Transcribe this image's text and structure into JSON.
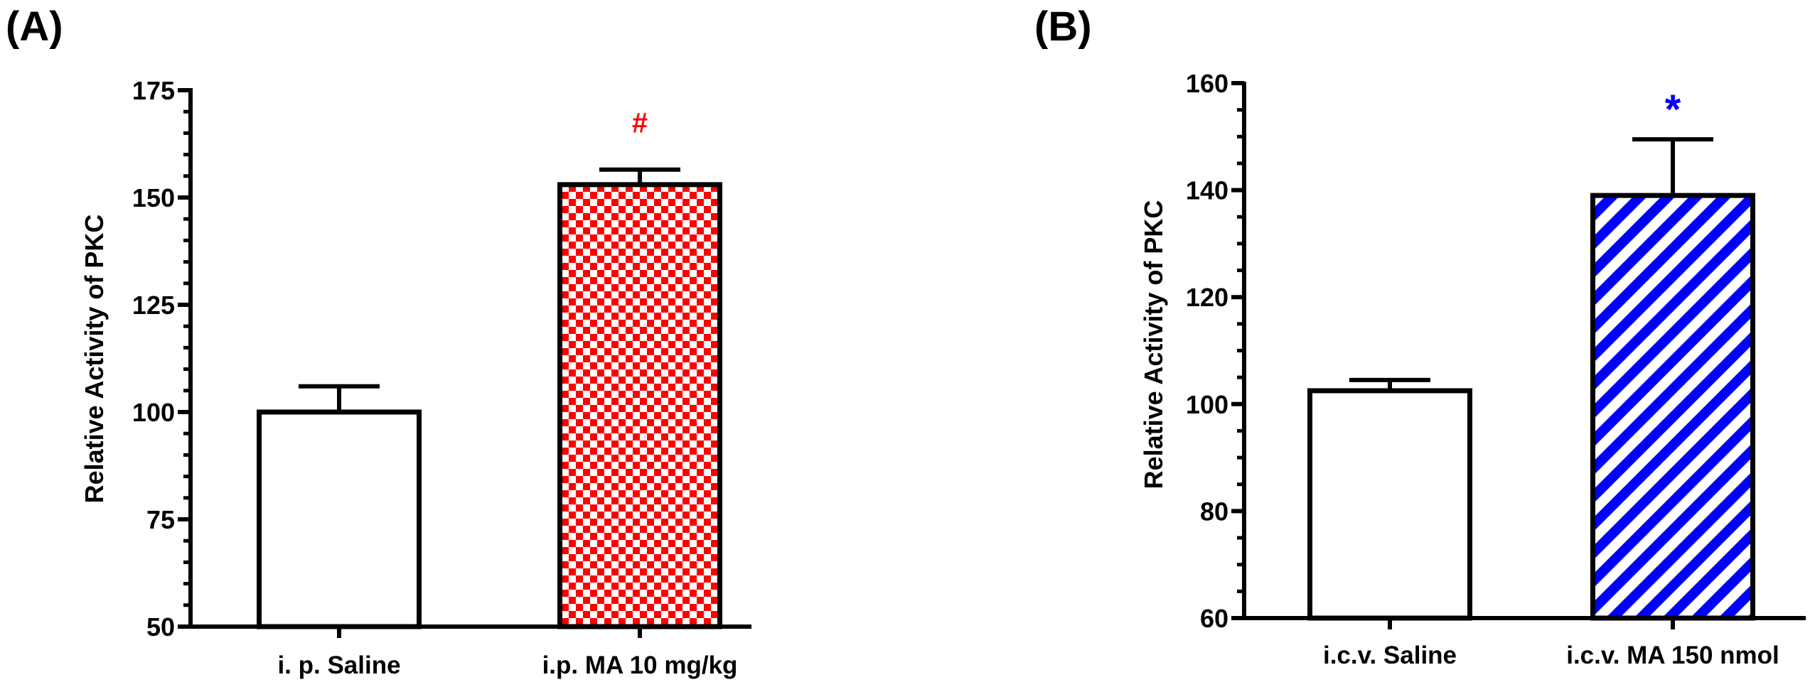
{
  "chart_data": [
    {
      "type": "bar",
      "panel_label": "(A)",
      "title": "",
      "xlabel": "",
      "ylabel": "Relative Activity of PKC",
      "ylim": [
        50,
        175
      ],
      "yticks": [
        50,
        75,
        100,
        125,
        150,
        175
      ],
      "minor_tick_step": 5,
      "categories": [
        "i. p. Saline",
        "i.p. MA 10 mg/kg"
      ],
      "values": [
        100,
        153
      ],
      "errors": [
        6,
        3.5
      ],
      "fills": [
        "plain",
        "checker"
      ],
      "significance": [
        "",
        "#"
      ],
      "colors": {
        "accent": "#ff0000",
        "outline": "#000000",
        "plain_fill": "#ffffff"
      }
    },
    {
      "type": "bar",
      "panel_label": "(B)",
      "title": "",
      "xlabel": "",
      "ylabel": "Relative Activity of PKC",
      "ylim": [
        60,
        160
      ],
      "yticks": [
        60,
        80,
        100,
        120,
        140,
        160
      ],
      "minor_tick_step": 5,
      "categories": [
        "i.c.v. Saline",
        "i.c.v. MA 150 nmol"
      ],
      "values": [
        102.5,
        139
      ],
      "errors": [
        2,
        10.5
      ],
      "fills": [
        "plain",
        "stripes"
      ],
      "significance": [
        "",
        "*"
      ],
      "colors": {
        "accent": "#0000ff",
        "outline": "#000000",
        "plain_fill": "#ffffff"
      }
    }
  ]
}
